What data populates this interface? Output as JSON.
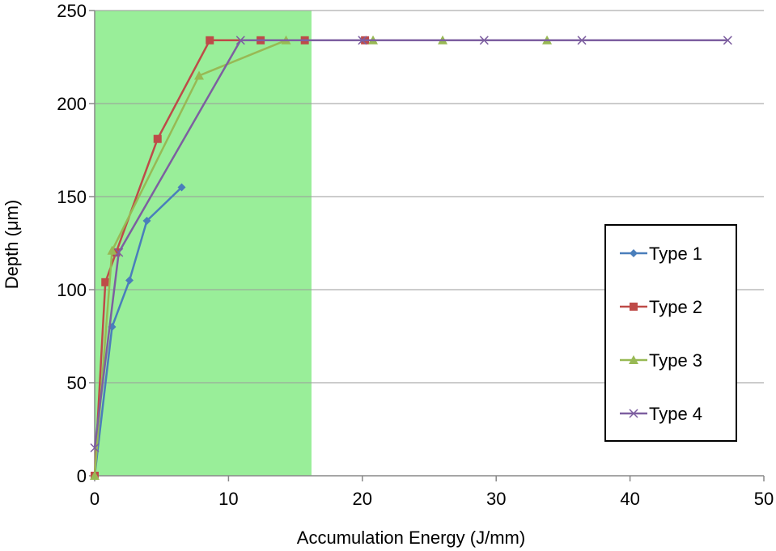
{
  "chart_data": {
    "type": "line",
    "title": "",
    "xlabel": "Accumulation Energy (J/mm)",
    "ylabel": "Depth (μm)",
    "xlim": [
      0,
      50
    ],
    "ylim": [
      0,
      250
    ],
    "xticks": [
      0,
      10,
      20,
      30,
      40,
      50
    ],
    "yticks": [
      0,
      50,
      100,
      150,
      200,
      250
    ],
    "grid": "horizontal",
    "legend_position": "right",
    "shaded_region": {
      "x_start": 0,
      "x_end": 16.2,
      "color": "#99ee99"
    },
    "series": [
      {
        "name": "Type 1",
        "color": "#4a7ebb",
        "marker": "diamond",
        "points": [
          [
            0,
            0
          ],
          [
            1.3,
            80
          ],
          [
            2.6,
            105
          ],
          [
            3.9,
            137
          ],
          [
            6.5,
            155
          ]
        ]
      },
      {
        "name": "Type 2",
        "color": "#be4b48",
        "marker": "square",
        "points": [
          [
            0,
            0
          ],
          [
            0.8,
            104
          ],
          [
            1.6,
            120
          ],
          [
            4.7,
            181
          ],
          [
            8.6,
            234
          ],
          [
            12.4,
            234
          ],
          [
            15.7,
            234
          ],
          [
            20.2,
            234
          ]
        ]
      },
      {
        "name": "Type 3",
        "color": "#98b954",
        "marker": "triangle",
        "points": [
          [
            0,
            0
          ],
          [
            1.3,
            121
          ],
          [
            7.8,
            215
          ],
          [
            14.3,
            234
          ],
          [
            20.8,
            234
          ],
          [
            26.0,
            234
          ],
          [
            33.8,
            234
          ]
        ]
      },
      {
        "name": "Type 4",
        "color": "#7d5fa0",
        "marker": "x",
        "points": [
          [
            0,
            15
          ],
          [
            1.8,
            120
          ],
          [
            10.9,
            234
          ],
          [
            20.0,
            234
          ],
          [
            29.1,
            234
          ],
          [
            36.4,
            234
          ],
          [
            47.3,
            234
          ]
        ]
      }
    ]
  }
}
